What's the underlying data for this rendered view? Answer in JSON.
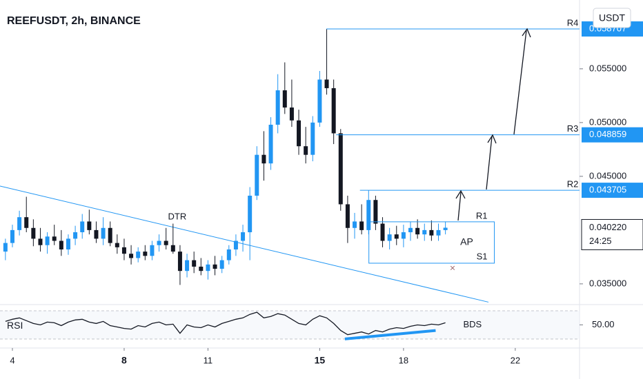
{
  "chart_data": {
    "type": "candlestick",
    "title": "REEFUSDT, 2h, BINANCE",
    "currency": "USDT",
    "up_color": "#2196f3",
    "down_color": "#131722",
    "x": [
      3.75,
      4.0,
      4.25,
      4.5,
      4.75,
      5.0,
      5.25,
      5.5,
      5.75,
      6.0,
      6.25,
      6.5,
      6.75,
      7.0,
      7.25,
      7.5,
      7.75,
      8.0,
      8.25,
      8.5,
      8.75,
      9.0,
      9.25,
      9.5,
      9.75,
      10.0,
      10.25,
      10.5,
      10.75,
      11.0,
      11.25,
      11.5,
      11.75,
      12.0,
      12.25,
      12.5,
      12.75,
      13.0,
      13.25,
      13.5,
      13.75,
      14.0,
      14.25,
      14.5,
      14.75,
      15.0,
      15.25,
      15.5,
      15.75,
      16.0,
      16.25,
      16.5,
      16.75,
      17.0,
      17.25,
      17.5,
      17.75,
      18.0,
      18.25,
      18.5,
      18.75,
      19.0,
      19.25,
      19.5
    ],
    "open": [
      0.038,
      0.0388,
      0.04,
      0.0412,
      0.0402,
      0.0392,
      0.0386,
      0.0394,
      0.039,
      0.0382,
      0.0392,
      0.0398,
      0.0408,
      0.04,
      0.0392,
      0.0402,
      0.0388,
      0.0384,
      0.0378,
      0.0374,
      0.038,
      0.0376,
      0.0386,
      0.039,
      0.0386,
      0.038,
      0.0362,
      0.0372,
      0.0366,
      0.0362,
      0.0368,
      0.0364,
      0.0372,
      0.0382,
      0.039,
      0.0398,
      0.0432,
      0.047,
      0.0462,
      0.0498,
      0.053,
      0.0514,
      0.0502,
      0.0478,
      0.047,
      0.05,
      0.054,
      0.0532,
      0.049,
      0.0424,
      0.0402,
      0.0408,
      0.04,
      0.0428,
      0.0406,
      0.039,
      0.0396,
      0.0392,
      0.0398,
      0.0402,
      0.0396,
      0.04,
      0.0395,
      0.04
    ],
    "high": [
      0.0392,
      0.0405,
      0.0418,
      0.0431,
      0.041,
      0.0402,
      0.0398,
      0.0405,
      0.04,
      0.0396,
      0.0404,
      0.0415,
      0.0419,
      0.0408,
      0.0412,
      0.0408,
      0.0396,
      0.0392,
      0.0386,
      0.0384,
      0.0386,
      0.039,
      0.0396,
      0.0402,
      0.0406,
      0.0386,
      0.0378,
      0.038,
      0.0374,
      0.0372,
      0.0376,
      0.0376,
      0.0386,
      0.0396,
      0.0405,
      0.044,
      0.0478,
      0.0492,
      0.0505,
      0.0545,
      0.0556,
      0.054,
      0.0512,
      0.0496,
      0.0506,
      0.0548,
      0.0587,
      0.054,
      0.0494,
      0.0432,
      0.0416,
      0.0424,
      0.0437,
      0.0432,
      0.0412,
      0.0402,
      0.0404,
      0.0405,
      0.0408,
      0.041,
      0.0406,
      0.0409,
      0.0406,
      0.0408
    ],
    "low": [
      0.0372,
      0.0384,
      0.0395,
      0.0398,
      0.0385,
      0.038,
      0.0378,
      0.0386,
      0.0376,
      0.0377,
      0.0386,
      0.0392,
      0.0396,
      0.0388,
      0.0386,
      0.0385,
      0.0378,
      0.0372,
      0.0368,
      0.037,
      0.0372,
      0.0372,
      0.038,
      0.0382,
      0.0378,
      0.0349,
      0.0356,
      0.036,
      0.0358,
      0.0354,
      0.0358,
      0.036,
      0.0368,
      0.0376,
      0.038,
      0.0372,
      0.0428,
      0.0446,
      0.0456,
      0.049,
      0.0508,
      0.0496,
      0.047,
      0.0462,
      0.0464,
      0.0496,
      0.0526,
      0.048,
      0.0418,
      0.0388,
      0.0392,
      0.0396,
      0.0396,
      0.04,
      0.0384,
      0.0382,
      0.0386,
      0.0384,
      0.039,
      0.0392,
      0.039,
      0.039,
      0.039,
      0.0396
    ],
    "close": [
      0.0388,
      0.04,
      0.0412,
      0.0402,
      0.0392,
      0.0386,
      0.0394,
      0.039,
      0.0382,
      0.0392,
      0.0398,
      0.0408,
      0.04,
      0.0392,
      0.0402,
      0.0388,
      0.0384,
      0.0378,
      0.0374,
      0.038,
      0.0376,
      0.0386,
      0.039,
      0.0386,
      0.038,
      0.0362,
      0.0372,
      0.0366,
      0.0362,
      0.0368,
      0.0364,
      0.0372,
      0.0382,
      0.039,
      0.0398,
      0.0432,
      0.047,
      0.0462,
      0.0498,
      0.053,
      0.0514,
      0.0502,
      0.0478,
      0.047,
      0.05,
      0.054,
      0.0532,
      0.049,
      0.0424,
      0.0402,
      0.0408,
      0.04,
      0.0428,
      0.0406,
      0.039,
      0.0396,
      0.0392,
      0.0398,
      0.0402,
      0.0396,
      0.04,
      0.0395,
      0.04,
      0.04022
    ],
    "xlim": [
      3.556,
      24.3
    ],
    "xticks": [
      4,
      8,
      11,
      15,
      18,
      22
    ],
    "ylim": [
      0.0332,
      0.0614
    ],
    "yticks": [
      {
        "value": 0.035,
        "label": "0.035000"
      },
      {
        "value": 0.045,
        "label": "0.045000"
      },
      {
        "value": 0.05,
        "label": "0.050000"
      },
      {
        "value": 0.055,
        "label": "0.055000"
      }
    ],
    "last_price": {
      "value": 0.04022,
      "label": "0.040220",
      "countdown": "24:25"
    },
    "levels": [
      {
        "name": "R4",
        "value": 0.058707,
        "label": "0.058707",
        "start": 15.24
      },
      {
        "name": "R3",
        "value": 0.048859,
        "label": "0.048859",
        "start": 15.59
      },
      {
        "name": "R2",
        "value": 0.043705,
        "label": "0.043705",
        "start": 16.44
      }
    ],
    "trendline": {
      "x": [
        3.556,
        21.04
      ],
      "values": [
        0.0441,
        0.0333
      ]
    },
    "box": {
      "x": [
        16.76,
        21.25
      ],
      "values": [
        0.03692,
        0.04077
      ],
      "top_label": "R1",
      "bottom_label": "S1",
      "center_label": "AP"
    },
    "annotations": [
      {
        "text": "DTR",
        "x": 9.9,
        "value": 0.0412
      }
    ],
    "rsi": {
      "name": "RSI",
      "values": [
        55,
        58,
        60,
        56,
        52,
        50,
        54,
        53,
        49,
        54,
        57,
        58,
        54,
        52,
        55,
        49,
        47,
        45,
        44,
        49,
        47,
        52,
        54,
        50,
        51,
        38,
        50,
        47,
        46,
        50,
        47,
        52,
        55,
        58,
        60,
        65,
        68,
        60,
        62,
        66,
        64,
        58,
        52,
        50,
        58,
        63,
        60,
        52,
        42,
        36,
        38,
        40,
        37,
        42,
        40,
        44,
        46,
        45,
        48,
        50,
        49,
        51,
        50,
        53
      ],
      "ylim": [
        22,
        74
      ],
      "yticks": [
        {
          "value": 50,
          "label": "50.00"
        }
      ],
      "bands": [
        30,
        70
      ],
      "divergence": {
        "x": [
          15.9,
          19.15
        ],
        "values": [
          30,
          42
        ],
        "label": "BDS"
      }
    }
  }
}
